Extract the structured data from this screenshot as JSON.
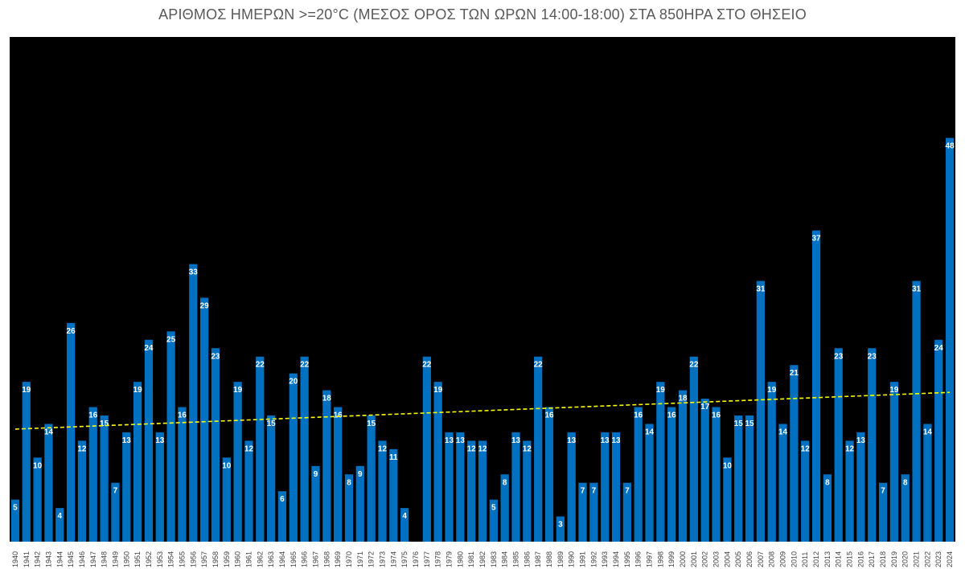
{
  "chart_data": {
    "type": "bar",
    "title": "ΑΡΙΘΜΟΣ ΗΜΕΡΩΝ >=20°C (ΜΕΣΟΣ ΟΡΟΣ ΤΩΝ ΩΡΩΝ 14:00-18:00) ΣΤΑ 850HPA ΣΤΟ ΘΗΣΕΙΟ",
    "xlabel": "",
    "ylabel": "",
    "ylim": [
      0,
      60
    ],
    "grid": false,
    "legend": "none",
    "trendline": {
      "type": "linear",
      "color": "#ffff00",
      "style": "dashed"
    },
    "categories": [
      "1940",
      "1941",
      "1942",
      "1943",
      "1944",
      "1945",
      "1946",
      "1947",
      "1948",
      "1949",
      "1950",
      "1951",
      "1952",
      "1953",
      "1954",
      "1955",
      "1956",
      "1957",
      "1958",
      "1959",
      "1960",
      "1961",
      "1962",
      "1963",
      "1964",
      "1965",
      "1966",
      "1967",
      "1968",
      "1969",
      "1970",
      "1971",
      "1972",
      "1973",
      "1974",
      "1975",
      "1976",
      "1977",
      "1978",
      "1979",
      "1980",
      "1981",
      "1982",
      "1983",
      "1984",
      "1985",
      "1986",
      "1987",
      "1988",
      "1989",
      "1990",
      "1991",
      "1992",
      "1993",
      "1994",
      "1995",
      "1996",
      "1997",
      "1998",
      "1999",
      "2000",
      "2001",
      "2002",
      "2003",
      "2004",
      "2005",
      "2006",
      "2007",
      "2008",
      "2009",
      "2010",
      "2011",
      "2012",
      "2013",
      "2014",
      "2015",
      "2016",
      "2017",
      "2018",
      "2019",
      "2020",
      "2021",
      "2022",
      "2023",
      "2024"
    ],
    "values": [
      5,
      19,
      10,
      14,
      4,
      26,
      12,
      16,
      15,
      7,
      13,
      19,
      24,
      13,
      25,
      16,
      33,
      29,
      23,
      10,
      19,
      12,
      22,
      15,
      6,
      20,
      22,
      9,
      18,
      16,
      8,
      9,
      15,
      12,
      11,
      4,
      0,
      22,
      19,
      13,
      13,
      12,
      12,
      5,
      8,
      13,
      12,
      22,
      16,
      3,
      13,
      7,
      7,
      13,
      13,
      7,
      16,
      14,
      19,
      16,
      18,
      22,
      17,
      16,
      10,
      15,
      15,
      31,
      19,
      14,
      21,
      12,
      37,
      8,
      23,
      12,
      13,
      23,
      7,
      19,
      8,
      31,
      14,
      24,
      48
    ],
    "colors": {
      "bar": "#0070c0",
      "plot_background": "#000000",
      "page_background": "#ffffff",
      "label": "#ffffff",
      "title": "#595959"
    }
  }
}
